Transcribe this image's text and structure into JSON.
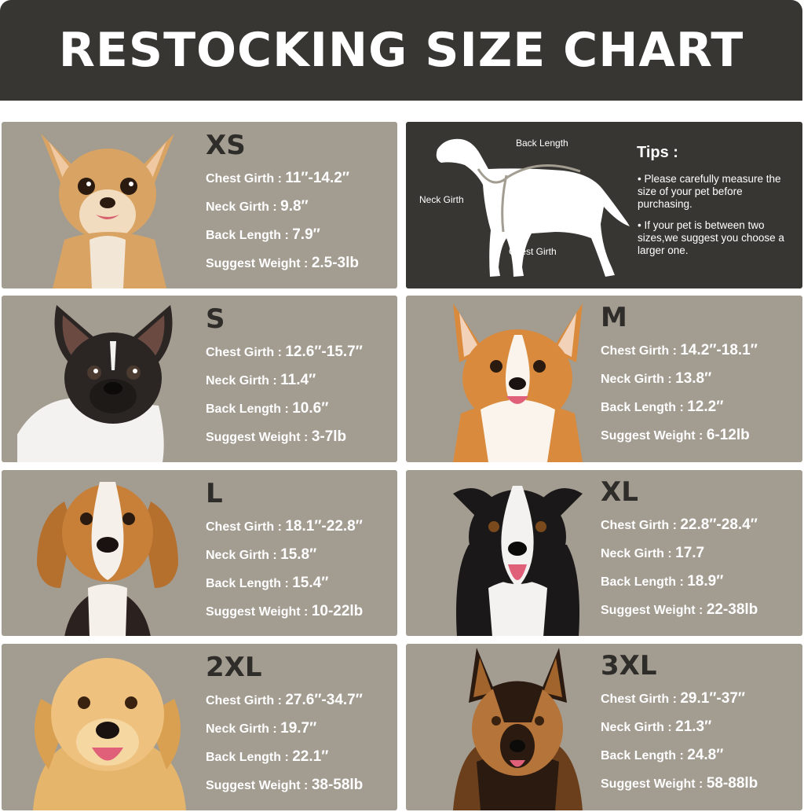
{
  "title": "RESTOCKING SIZE CHART",
  "tips": {
    "heading": "Tips :",
    "items": [
      "• Please carefully measure the size of your pet before purchasing.",
      "• If your pet is between two sizes,we suggest you choose a larger one."
    ],
    "diagram_labels": {
      "back_length": "Back Length",
      "neck_girth": "Neck Girth",
      "chest_girth": "Chest Girth"
    }
  },
  "field_labels": {
    "chest": "Chest Girth",
    "neck": "Neck Girth",
    "back": "Back Length",
    "weight": "Suggest Weight",
    "separator": " : "
  },
  "sizes": [
    {
      "size": "XS",
      "chest": "11″-14.2″",
      "neck": "9.8″",
      "back": "7.9″",
      "weight": "2.5-3lb",
      "dog": "chihuahua"
    },
    {
      "size": "S",
      "chest": "12.6″-15.7″",
      "neck": "11.4″",
      "back": "10.6″",
      "weight": "3-7lb",
      "dog": "french-bulldog"
    },
    {
      "size": "M",
      "chest": "14.2″-18.1″",
      "neck": "13.8″",
      "back": "12.2″",
      "weight": "6-12lb",
      "dog": "corgi"
    },
    {
      "size": "L",
      "chest": "18.1″-22.8″",
      "neck": "15.8″",
      "back": "15.4″",
      "weight": "10-22lb",
      "dog": "beagle"
    },
    {
      "size": "XL",
      "chest": "22.8″-28.4″",
      "neck": "17.7",
      "back": "18.9″",
      "weight": "22-38lb",
      "dog": "border-collie"
    },
    {
      "size": "2XL",
      "chest": "27.6″-34.7″",
      "neck": "19.7″",
      "back": "22.1″",
      "weight": "38-58lb",
      "dog": "golden-retriever"
    },
    {
      "size": "3XL",
      "chest": "29.1″-37″",
      "neck": "21.3″",
      "back": "24.8″",
      "weight": "58-88lb",
      "dog": "german-shepherd"
    }
  ],
  "colors": {
    "banner": "#383632",
    "card": "#a39c91",
    "size_text": "#2f2d2a",
    "label_text": "#ffffff"
  }
}
